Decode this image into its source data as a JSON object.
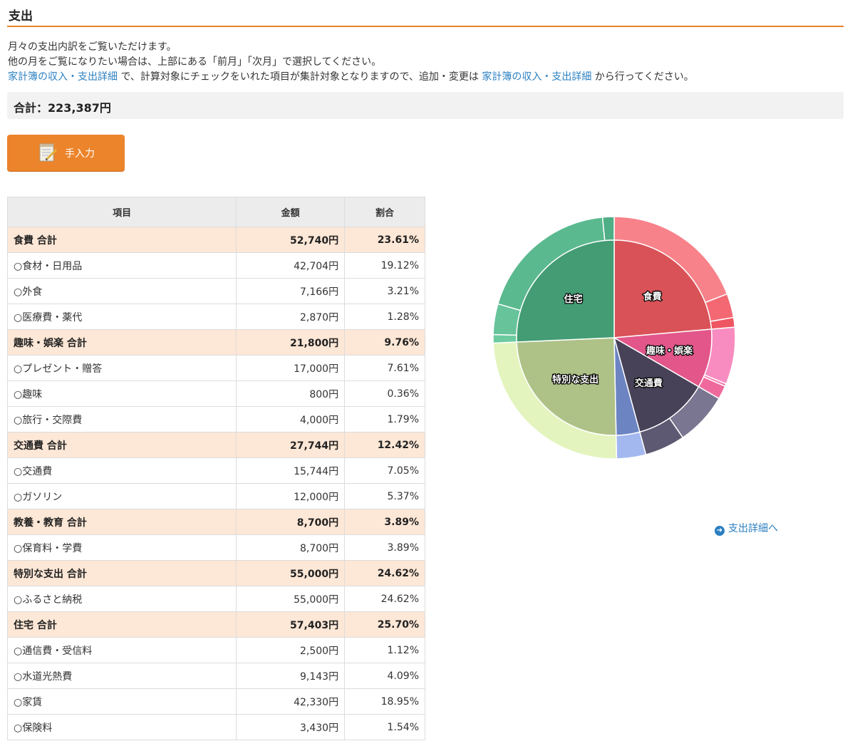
{
  "page": {
    "title": "支出",
    "desc_line1": "月々の支出内訳をご覧いただけます。",
    "desc_line2": "他の月をご覧になりたい場合は、上部にある「前月」「次月」で選択してください。",
    "link1": "家計簿の収入・支出詳細",
    "desc_mid": " で、計算対象にチェックをいれた項目が集計対象となりますので、追加・変更は ",
    "link2": "家計簿の収入・支出詳細",
    "desc_end": " から行ってください。",
    "total": "合計：223,387円",
    "manual_button": "手入力",
    "detail_link": "支出詳細へ"
  },
  "table": {
    "headers": [
      "項目",
      "金額",
      "割合"
    ],
    "rows": [
      {
        "type": "group",
        "label": "食費 合計",
        "amount": "52,740円",
        "ratio": "23.61%"
      },
      {
        "type": "item",
        "label": "○食材・日用品",
        "amount": "42,704円",
        "ratio": "19.12%"
      },
      {
        "type": "item",
        "label": "○外食",
        "amount": "7,166円",
        "ratio": "3.21%"
      },
      {
        "type": "item",
        "label": "○医療費・薬代",
        "amount": "2,870円",
        "ratio": "1.28%"
      },
      {
        "type": "group",
        "label": "趣味・娯楽 合計",
        "amount": "21,800円",
        "ratio": "9.76%"
      },
      {
        "type": "item",
        "label": "○プレゼント・贈答",
        "amount": "17,000円",
        "ratio": "7.61%"
      },
      {
        "type": "item",
        "label": "○趣味",
        "amount": "800円",
        "ratio": "0.36%"
      },
      {
        "type": "item",
        "label": "○旅行・交際費",
        "amount": "4,000円",
        "ratio": "1.79%"
      },
      {
        "type": "group",
        "label": "交通費 合計",
        "amount": "27,744円",
        "ratio": "12.42%"
      },
      {
        "type": "item",
        "label": "○交通費",
        "amount": "15,744円",
        "ratio": "7.05%"
      },
      {
        "type": "item",
        "label": "○ガソリン",
        "amount": "12,000円",
        "ratio": "5.37%"
      },
      {
        "type": "group",
        "label": "教養・教育 合計",
        "amount": "8,700円",
        "ratio": "3.89%"
      },
      {
        "type": "item",
        "label": "○保育料・学費",
        "amount": "8,700円",
        "ratio": "3.89%"
      },
      {
        "type": "group",
        "label": "特別な支出 合計",
        "amount": "55,000円",
        "ratio": "24.62%"
      },
      {
        "type": "item",
        "label": "○ふるさと納税",
        "amount": "55,000円",
        "ratio": "24.62%"
      },
      {
        "type": "group",
        "label": "住宅 合計",
        "amount": "57,403円",
        "ratio": "25.70%"
      },
      {
        "type": "item",
        "label": "○通信費・受信料",
        "amount": "2,500円",
        "ratio": "1.12%"
      },
      {
        "type": "item",
        "label": "○水道光熱費",
        "amount": "9,143円",
        "ratio": "4.09%"
      },
      {
        "type": "item",
        "label": "○家賃",
        "amount": "42,330円",
        "ratio": "18.95%"
      },
      {
        "type": "item",
        "label": "○保険料",
        "amount": "3,430円",
        "ratio": "1.54%"
      }
    ]
  },
  "chart_data": {
    "type": "pie",
    "inner": [
      {
        "name": "食費",
        "value": 52740,
        "color": "#d95257",
        "label": true
      },
      {
        "name": "趣味・娯楽",
        "value": 21800,
        "color": "#e2568a",
        "label": true
      },
      {
        "name": "交通費",
        "value": 27744,
        "color": "#474258",
        "label": true
      },
      {
        "name": "教養・教育",
        "value": 8700,
        "color": "#6c84c2",
        "label": false
      },
      {
        "name": "特別な支出",
        "value": 55000,
        "color": "#aec287",
        "label": true
      },
      {
        "name": "住宅",
        "value": 57403,
        "color": "#439c73",
        "label": true
      }
    ],
    "outer": [
      {
        "name": "食材・日用品",
        "value": 42704,
        "color": "#f8828a"
      },
      {
        "name": "外食",
        "value": 7166,
        "color": "#f36872"
      },
      {
        "name": "医療費・薬代",
        "value": 2870,
        "color": "#ee5662"
      },
      {
        "name": "プレゼント・贈答",
        "value": 17000,
        "color": "#f88cc0"
      },
      {
        "name": "趣味",
        "value": 800,
        "color": "#f47aac"
      },
      {
        "name": "旅行・交際費",
        "value": 4000,
        "color": "#ef699c"
      },
      {
        "name": "交通費",
        "value": 15744,
        "color": "#7a7590"
      },
      {
        "name": "ガソリン",
        "value": 12000,
        "color": "#5d5973"
      },
      {
        "name": "保育料・学費",
        "value": 8700,
        "color": "#a4b8f0"
      },
      {
        "name": "ふるさと納税",
        "value": 55000,
        "color": "#e3f4be"
      },
      {
        "name": "通信費・受信料",
        "value": 2500,
        "color": "#6ccaa0"
      },
      {
        "name": "水道光熱費",
        "value": 9143,
        "color": "#66c39a"
      },
      {
        "name": "家賃",
        "value": 42330,
        "color": "#5bb98f"
      },
      {
        "name": "保険料",
        "value": 3430,
        "color": "#4fae85"
      }
    ]
  }
}
